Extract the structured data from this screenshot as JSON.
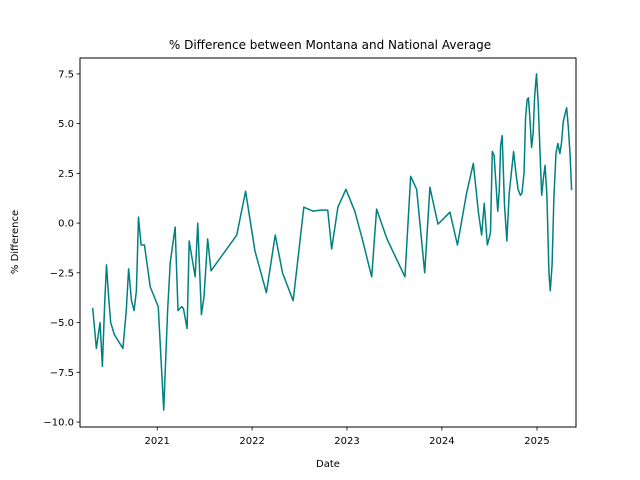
{
  "chart_data": {
    "type": "line",
    "title": "% Difference between Montana and National Average",
    "xlabel": "Date",
    "ylabel": "% Difference",
    "xlim": [
      "2020-03-10",
      "2025-05-31"
    ],
    "ylim": [
      -10.25,
      8.3
    ],
    "grid": false,
    "x_ticks": [
      {
        "value": "2021-01-01",
        "label": "2021"
      },
      {
        "value": "2022-01-01",
        "label": "2022"
      },
      {
        "value": "2023-01-01",
        "label": "2023"
      },
      {
        "value": "2024-01-01",
        "label": "2024"
      },
      {
        "value": "2025-01-01",
        "label": "2025"
      }
    ],
    "y_ticks": [
      {
        "value": -10.0,
        "label": "−10.0"
      },
      {
        "value": -7.5,
        "label": "−7.5"
      },
      {
        "value": -5.0,
        "label": "−5.0"
      },
      {
        "value": -2.5,
        "label": "−2.5"
      },
      {
        "value": 0.0,
        "label": "0.0"
      },
      {
        "value": 2.5,
        "label": "2.5"
      },
      {
        "value": 5.0,
        "label": "5.0"
      },
      {
        "value": 7.5,
        "label": "7.5"
      }
    ],
    "series": [
      {
        "color": "#008080",
        "points": [
          {
            "x": "2020-04-28",
            "y": -4.3
          },
          {
            "x": "2020-05-12",
            "y": -6.3
          },
          {
            "x": "2020-05-26",
            "y": -5.0
          },
          {
            "x": "2020-06-04",
            "y": -7.2
          },
          {
            "x": "2020-06-13",
            "y": -4.0
          },
          {
            "x": "2020-06-20",
            "y": -2.1
          },
          {
            "x": "2020-06-27",
            "y": -3.5
          },
          {
            "x": "2020-07-06",
            "y": -5.0
          },
          {
            "x": "2020-07-20",
            "y": -5.6
          },
          {
            "x": "2020-08-22",
            "y": -6.3
          },
          {
            "x": "2020-09-04",
            "y": -4.4
          },
          {
            "x": "2020-09-13",
            "y": -2.3
          },
          {
            "x": "2020-09-24",
            "y": -3.9
          },
          {
            "x": "2020-10-04",
            "y": -4.4
          },
          {
            "x": "2020-10-13",
            "y": -3.4
          },
          {
            "x": "2020-10-21",
            "y": 0.3
          },
          {
            "x": "2020-10-31",
            "y": -1.1
          },
          {
            "x": "2020-11-13",
            "y": -1.1
          },
          {
            "x": "2020-12-05",
            "y": -3.2
          },
          {
            "x": "2021-01-05",
            "y": -4.2
          },
          {
            "x": "2021-01-26",
            "y": -9.4
          },
          {
            "x": "2021-02-10",
            "y": -4.4
          },
          {
            "x": "2021-02-20",
            "y": -2.0
          },
          {
            "x": "2021-03-11",
            "y": -0.2
          },
          {
            "x": "2021-03-22",
            "y": -4.4
          },
          {
            "x": "2021-04-05",
            "y": -4.2
          },
          {
            "x": "2021-04-12",
            "y": -4.3
          },
          {
            "x": "2021-04-26",
            "y": -5.3
          },
          {
            "x": "2021-05-04",
            "y": -0.9
          },
          {
            "x": "2021-05-27",
            "y": -2.7
          },
          {
            "x": "2021-06-06",
            "y": 0.0
          },
          {
            "x": "2021-06-20",
            "y": -4.6
          },
          {
            "x": "2021-06-30",
            "y": -3.7
          },
          {
            "x": "2021-07-14",
            "y": -0.8
          },
          {
            "x": "2021-07-27",
            "y": -2.4
          },
          {
            "x": "2021-11-03",
            "y": -0.6
          },
          {
            "x": "2021-12-07",
            "y": 1.6
          },
          {
            "x": "2022-01-12",
            "y": -1.4
          },
          {
            "x": "2022-02-25",
            "y": -3.5
          },
          {
            "x": "2022-03-31",
            "y": -0.6
          },
          {
            "x": "2022-04-28",
            "y": -2.5
          },
          {
            "x": "2022-06-08",
            "y": -3.9
          },
          {
            "x": "2022-07-19",
            "y": 0.8
          },
          {
            "x": "2022-08-24",
            "y": 0.6
          },
          {
            "x": "2022-09-22",
            "y": 0.65
          },
          {
            "x": "2022-10-19",
            "y": 0.65
          },
          {
            "x": "2022-11-03",
            "y": -1.3
          },
          {
            "x": "2022-11-27",
            "y": 0.8
          },
          {
            "x": "2022-12-28",
            "y": 1.7
          },
          {
            "x": "2023-01-31",
            "y": 0.6
          },
          {
            "x": "2023-03-01",
            "y": -0.8
          },
          {
            "x": "2023-04-06",
            "y": -2.7
          },
          {
            "x": "2023-04-25",
            "y": 0.7
          },
          {
            "x": "2023-06-04",
            "y": -0.8
          },
          {
            "x": "2023-08-12",
            "y": -2.7
          },
          {
            "x": "2023-09-03",
            "y": 2.35
          },
          {
            "x": "2023-09-26",
            "y": 1.7
          },
          {
            "x": "2023-10-27",
            "y": -2.5
          },
          {
            "x": "2023-11-16",
            "y": 1.8
          },
          {
            "x": "2023-12-06",
            "y": 0.6
          },
          {
            "x": "2023-12-17",
            "y": -0.05
          },
          {
            "x": "2024-02-01",
            "y": 0.55
          },
          {
            "x": "2024-03-01",
            "y": -1.1
          },
          {
            "x": "2024-04-05",
            "y": 1.5
          },
          {
            "x": "2024-05-01",
            "y": 3.0
          },
          {
            "x": "2024-05-21",
            "y": 0.5
          },
          {
            "x": "2024-06-02",
            "y": -0.6
          },
          {
            "x": "2024-06-12",
            "y": 1.0
          },
          {
            "x": "2024-06-24",
            "y": -1.1
          },
          {
            "x": "2024-07-06",
            "y": -0.5
          },
          {
            "x": "2024-07-13",
            "y": 3.6
          },
          {
            "x": "2024-07-20",
            "y": 3.4
          },
          {
            "x": "2024-08-03",
            "y": 0.6
          },
          {
            "x": "2024-08-09",
            "y": 1.7
          },
          {
            "x": "2024-08-14",
            "y": 3.9
          },
          {
            "x": "2024-08-20",
            "y": 4.4
          },
          {
            "x": "2024-08-29",
            "y": 0.9
          },
          {
            "x": "2024-09-07",
            "y": -0.9
          },
          {
            "x": "2024-09-16",
            "y": 1.5
          },
          {
            "x": "2024-10-03",
            "y": 3.6
          },
          {
            "x": "2024-10-12",
            "y": 2.5
          },
          {
            "x": "2024-10-20",
            "y": 1.7
          },
          {
            "x": "2024-10-29",
            "y": 1.4
          },
          {
            "x": "2024-11-04",
            "y": 1.5
          },
          {
            "x": "2024-11-12",
            "y": 2.5
          },
          {
            "x": "2024-11-18",
            "y": 5.3
          },
          {
            "x": "2024-11-24",
            "y": 6.2
          },
          {
            "x": "2024-11-29",
            "y": 6.3
          },
          {
            "x": "2024-12-04",
            "y": 5.4
          },
          {
            "x": "2024-12-11",
            "y": 3.8
          },
          {
            "x": "2024-12-17",
            "y": 4.5
          },
          {
            "x": "2024-12-23",
            "y": 6.4
          },
          {
            "x": "2024-12-30",
            "y": 7.5
          },
          {
            "x": "2025-01-06",
            "y": 5.9
          },
          {
            "x": "2025-01-13",
            "y": 3.4
          },
          {
            "x": "2025-01-19",
            "y": 1.4
          },
          {
            "x": "2025-01-26",
            "y": 2.3
          },
          {
            "x": "2025-02-01",
            "y": 2.9
          },
          {
            "x": "2025-02-08",
            "y": 1.4
          },
          {
            "x": "2025-02-16",
            "y": -2.5
          },
          {
            "x": "2025-02-21",
            "y": -3.4
          },
          {
            "x": "2025-02-28",
            "y": -2.1
          },
          {
            "x": "2025-03-07",
            "y": 1.3
          },
          {
            "x": "2025-03-15",
            "y": 3.5
          },
          {
            "x": "2025-03-22",
            "y": 4.0
          },
          {
            "x": "2025-03-30",
            "y": 3.5
          },
          {
            "x": "2025-04-05",
            "y": 4.0
          },
          {
            "x": "2025-04-12",
            "y": 5.1
          },
          {
            "x": "2025-04-19",
            "y": 5.5
          },
          {
            "x": "2025-04-25",
            "y": 5.8
          },
          {
            "x": "2025-05-01",
            "y": 4.9
          },
          {
            "x": "2025-05-08",
            "y": 3.5
          },
          {
            "x": "2025-05-14",
            "y": 1.7
          }
        ]
      }
    ]
  }
}
